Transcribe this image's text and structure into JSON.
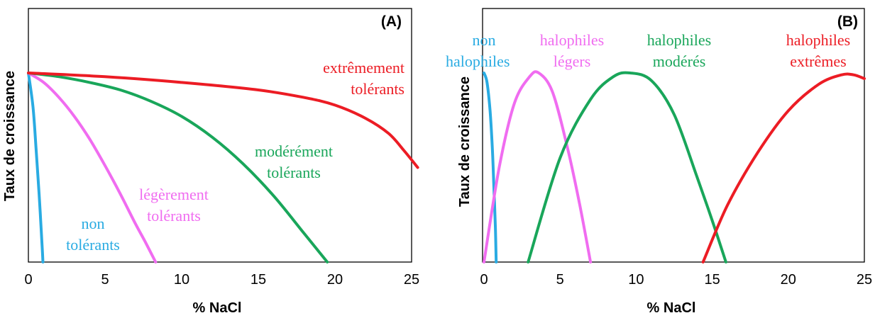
{
  "colors": {
    "blue": "#29ABE2",
    "pink": "#F06CF0",
    "green": "#19A65A",
    "red": "#EC1C24"
  },
  "chart_data": [
    {
      "type": "line",
      "panel": "(A)",
      "xlabel": "% NaCl",
      "ylabel": "Taux de croissance",
      "xlim": [
        0,
        25
      ],
      "ylim": [
        0,
        1
      ],
      "xticks": [
        "0",
        "5",
        "10",
        "15",
        "20",
        "25"
      ],
      "grid": false,
      "legend": "none",
      "series": [
        {
          "name": "non tolérants",
          "label_lines": [
            "non",
            "tolérants"
          ],
          "color": "#29ABE2",
          "x": [
            0,
            0.3,
            0.5,
            0.7,
            0.8,
            0.9,
            0.95
          ],
          "y": [
            1.0,
            0.82,
            0.6,
            0.36,
            0.22,
            0.08,
            0.0
          ]
        },
        {
          "name": "légèrement tolérants",
          "label_lines": [
            "légèrement",
            "tolérants"
          ],
          "color": "#F06CF0",
          "x": [
            0,
            1,
            2,
            3,
            4,
            5,
            6,
            7,
            7.6,
            8.3
          ],
          "y": [
            1.0,
            0.95,
            0.87,
            0.77,
            0.65,
            0.51,
            0.36,
            0.2,
            0.11,
            0.0
          ]
        },
        {
          "name": "modérément tolérants",
          "label_lines": [
            "modérément",
            "tolérants"
          ],
          "color": "#19A65A",
          "x": [
            0,
            2,
            4,
            6,
            8,
            10,
            12,
            14,
            16,
            18,
            19.5
          ],
          "y": [
            1.0,
            0.98,
            0.95,
            0.91,
            0.85,
            0.77,
            0.66,
            0.52,
            0.35,
            0.15,
            0.0
          ]
        },
        {
          "name": "extrêmement tolérants",
          "label_lines": [
            "extrêmement",
            "tolérants"
          ],
          "color": "#EC1C24",
          "x": [
            0,
            5,
            10,
            15,
            18,
            20,
            22,
            23.5,
            24.5,
            25.4
          ],
          "y": [
            1.0,
            0.98,
            0.95,
            0.91,
            0.87,
            0.83,
            0.76,
            0.68,
            0.59,
            0.5
          ]
        }
      ]
    },
    {
      "type": "line",
      "panel": "(B)",
      "xlabel": "% NaCl",
      "ylabel": "Taux de croissance",
      "xlim": [
        0,
        25
      ],
      "ylim": [
        0,
        1
      ],
      "xticks": [
        "0",
        "5",
        "10",
        "15",
        "20",
        "25"
      ],
      "grid": false,
      "legend": "none",
      "series": [
        {
          "name": "non halophiles",
          "label_lines": [
            "non",
            "halophiles"
          ],
          "color": "#29ABE2",
          "x": [
            0,
            0.2,
            0.4,
            0.55,
            0.65,
            0.75,
            0.8
          ],
          "y": [
            1.0,
            0.95,
            0.8,
            0.6,
            0.4,
            0.18,
            0.0
          ]
        },
        {
          "name": "halophiles légers",
          "label_lines": [
            "halophiles",
            "légers"
          ],
          "color": "#F06CF0",
          "x": [
            0,
            1,
            2,
            3,
            3.6,
            4.5,
            5.5,
            6.3,
            7.0
          ],
          "y": [
            0.0,
            0.5,
            0.84,
            0.98,
            1.0,
            0.9,
            0.6,
            0.3,
            0.0
          ]
        },
        {
          "name": "halophiles modérés",
          "label_lines": [
            "halophiles",
            "modérés"
          ],
          "color": "#19A65A",
          "x": [
            2.9,
            5,
            7,
            8.5,
            9.6,
            11,
            12.5,
            14,
            15,
            15.9
          ],
          "y": [
            0.0,
            0.55,
            0.86,
            0.98,
            1.0,
            0.96,
            0.78,
            0.45,
            0.22,
            0.0
          ]
        },
        {
          "name": "halophiles extrêmes",
          "label_lines": [
            "halophiles",
            "extrêmes"
          ],
          "color": "#EC1C24",
          "x": [
            14.4,
            16,
            18,
            20,
            22,
            23.5,
            24.3,
            25
          ],
          "y": [
            0.0,
            0.3,
            0.58,
            0.8,
            0.94,
            0.99,
            0.99,
            0.97
          ]
        }
      ]
    }
  ]
}
